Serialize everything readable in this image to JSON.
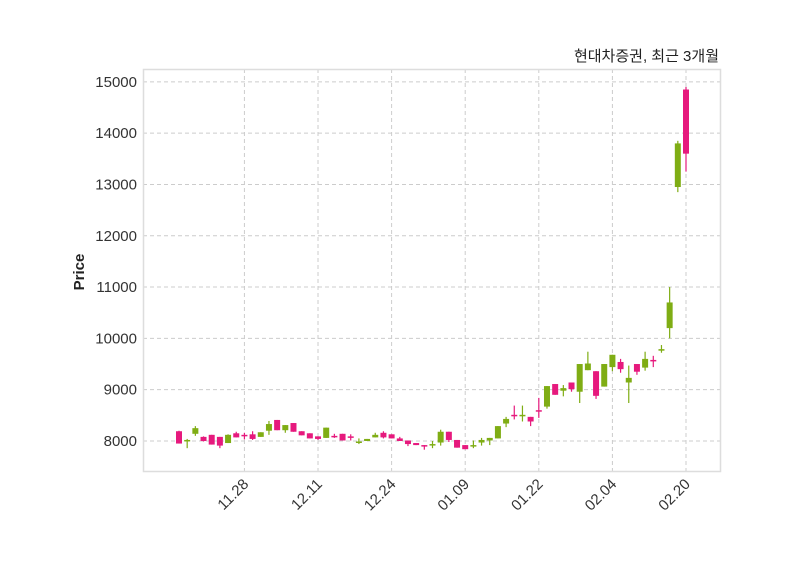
{
  "chart_data": {
    "type": "candlestick",
    "title": "현대차증권, 최근 3개월",
    "xlabel": "",
    "ylabel": "Price",
    "ylim": [
      7415,
      15250
    ],
    "grid": true,
    "colors": {
      "up": "#e6197d",
      "down": "#7fad14",
      "grid": "#cccccc",
      "frame": "#dddddd"
    },
    "yticks": [
      8000,
      9000,
      10000,
      11000,
      12000,
      13000,
      14000,
      15000
    ],
    "xticks": [
      {
        "index": 8,
        "label": "11.28"
      },
      {
        "index": 17,
        "label": "12.11"
      },
      {
        "index": 26,
        "label": "12.24"
      },
      {
        "index": 35,
        "label": "01.09"
      },
      {
        "index": 44,
        "label": "01.22"
      },
      {
        "index": 53,
        "label": "02.04"
      },
      {
        "index": 62,
        "label": "02.20"
      }
    ],
    "ohlc_fields": [
      "open",
      "high",
      "low",
      "close"
    ],
    "ohlc": [
      [
        7950,
        8200,
        7950,
        8190
      ],
      [
        8020,
        8040,
        7860,
        8000
      ],
      [
        8250,
        8290,
        8100,
        8140
      ],
      [
        8000,
        8090,
        7990,
        8080
      ],
      [
        7930,
        8120,
        7930,
        8120
      ],
      [
        7910,
        8080,
        7860,
        8080
      ],
      [
        8120,
        8130,
        7960,
        7960
      ],
      [
        8070,
        8180,
        8070,
        8150
      ],
      [
        8100,
        8160,
        8030,
        8120
      ],
      [
        8040,
        8190,
        8020,
        8130
      ],
      [
        8170,
        8170,
        8080,
        8080
      ],
      [
        8330,
        8390,
        8120,
        8200
      ],
      [
        8210,
        8410,
        8210,
        8410
      ],
      [
        8310,
        8310,
        8160,
        8210
      ],
      [
        8180,
        8350,
        8180,
        8350
      ],
      [
        8110,
        8190,
        8110,
        8190
      ],
      [
        8050,
        8150,
        8050,
        8150
      ],
      [
        8040,
        8090,
        8020,
        8090
      ],
      [
        8260,
        8260,
        8060,
        8060
      ],
      [
        8080,
        8140,
        8060,
        8100
      ],
      [
        8010,
        8140,
        8010,
        8140
      ],
      [
        8070,
        8130,
        8010,
        8090
      ],
      [
        7990,
        8050,
        7940,
        7970
      ],
      [
        8040,
        8040,
        8000,
        8000
      ],
      [
        8120,
        8160,
        8070,
        8070
      ],
      [
        8070,
        8190,
        8050,
        8160
      ],
      [
        8050,
        8130,
        8050,
        8130
      ],
      [
        8000,
        8080,
        8000,
        8050
      ],
      [
        7940,
        8010,
        7900,
        8010
      ],
      [
        7920,
        7960,
        7920,
        7960
      ],
      [
        7900,
        7920,
        7830,
        7920
      ],
      [
        7940,
        8000,
        7860,
        7920
      ],
      [
        8180,
        8220,
        7910,
        7970
      ],
      [
        8020,
        8180,
        7980,
        8180
      ],
      [
        7870,
        8020,
        7870,
        8020
      ],
      [
        7840,
        7920,
        7840,
        7920
      ],
      [
        7920,
        8010,
        7860,
        7900
      ],
      [
        8020,
        8060,
        7910,
        7970
      ],
      [
        8060,
        8060,
        7920,
        8010
      ],
      [
        8290,
        8290,
        8050,
        8050
      ],
      [
        8430,
        8470,
        8270,
        8340
      ],
      [
        8490,
        8690,
        8420,
        8510
      ],
      [
        8510,
        8690,
        8380,
        8490
      ],
      [
        8380,
        8470,
        8290,
        8470
      ],
      [
        8580,
        8840,
        8450,
        8600
      ],
      [
        9070,
        9070,
        8630,
        8670
      ],
      [
        8900,
        9110,
        8900,
        9110
      ],
      [
        9030,
        9090,
        8870,
        8980
      ],
      [
        9010,
        9140,
        8960,
        9140
      ],
      [
        9500,
        9500,
        8740,
        8960
      ],
      [
        9510,
        9740,
        9380,
        9380
      ],
      [
        8880,
        9360,
        8820,
        9360
      ],
      [
        9500,
        9500,
        9060,
        9060
      ],
      [
        9680,
        9680,
        9360,
        9440
      ],
      [
        9400,
        9600,
        9330,
        9540
      ],
      [
        9230,
        9470,
        8740,
        9140
      ],
      [
        9350,
        9500,
        9290,
        9500
      ],
      [
        9600,
        9740,
        9370,
        9430
      ],
      [
        9560,
        9660,
        9440,
        9580
      ],
      [
        9790,
        9870,
        9720,
        9760
      ],
      [
        10700,
        11000,
        10000,
        10200
      ],
      [
        13800,
        13850,
        12850,
        12950
      ],
      [
        13600,
        14900,
        13250,
        14850
      ]
    ]
  }
}
